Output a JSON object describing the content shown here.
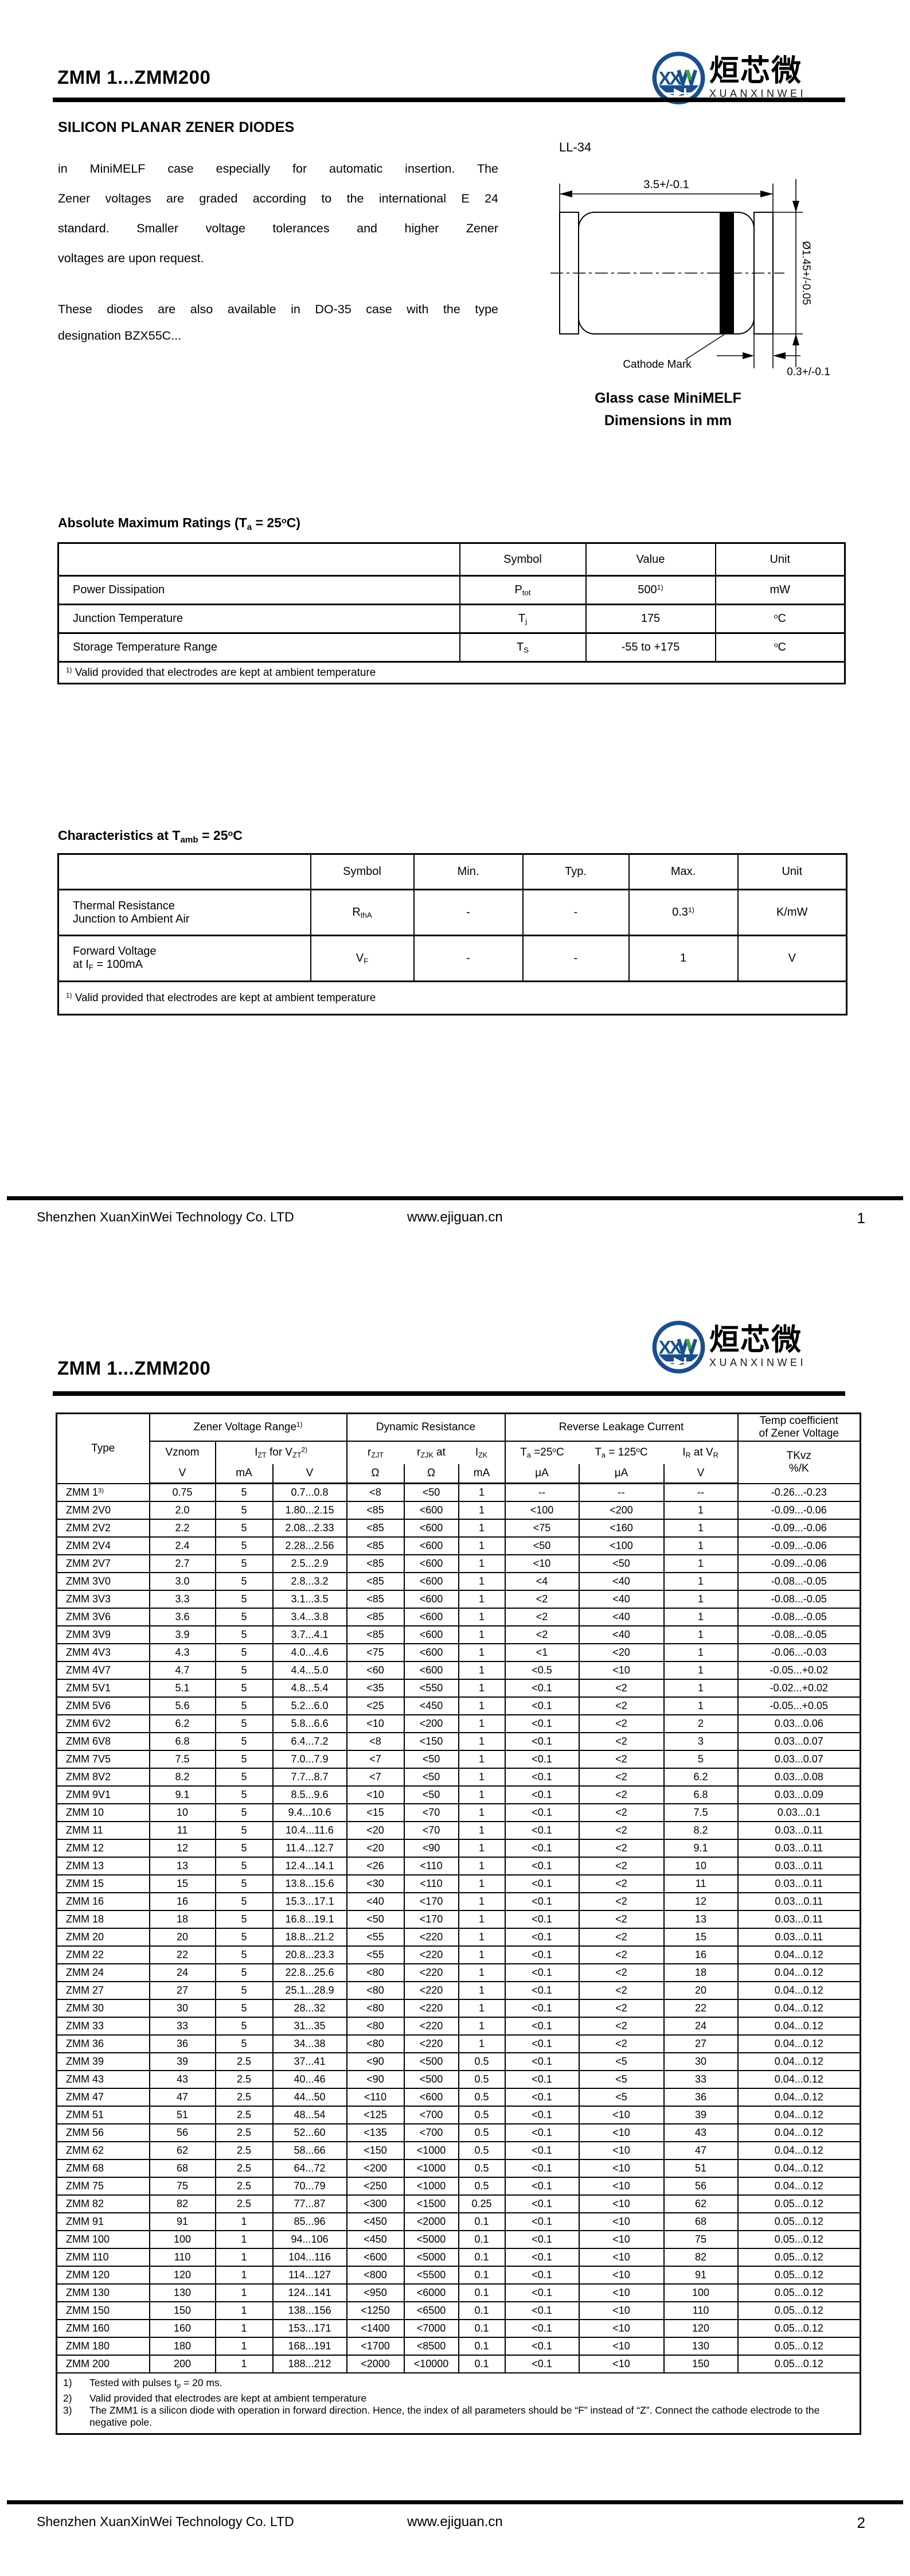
{
  "logo": {
    "chinese": "烜芯微",
    "latin": "XUANXINWEI",
    "monogram": "XX",
    "blue": "#1a4e8f",
    "green": "#3fa63c"
  },
  "footer": {
    "company": "Shenzhen XuanXinWei Technology Co. LTD",
    "website": "www.ejiguan.cn"
  },
  "page1": {
    "title": "ZMM 1...ZMM200",
    "page_number": "1",
    "section_heading": "SILICON PLANAR ZENER DIODES",
    "intro_lines": [
      "in MiniMELF case especially for automatic insertion. The",
      "Zener voltages are graded according to the international E 24",
      "standard. Smaller voltage tolerances and higher Zener",
      "voltages are upon request."
    ],
    "para2_lines": [
      "These diodes are also available in DO-35 case with the type",
      "designation BZX55C..."
    ],
    "package": {
      "name": "LL-34",
      "dim_length": "3.5+/-0.1",
      "dim_diameter": "Ø1.45+/-0.05",
      "dim_band": "0.3+/-0.1",
      "cathode_label": "Cathode Mark",
      "caption1": "Glass case MiniMELF",
      "caption2": "Dimensions in mm"
    },
    "amr": {
      "heading": "Absolute Maximum Ratings (T_{a} = 25^{o}C)",
      "col_headers": [
        "Symbol",
        "Value",
        "Unit"
      ],
      "rows": [
        {
          "param": "Power Dissipation",
          "symbol": "P_{tot}",
          "value": "500^{1)}",
          "unit": "mW"
        },
        {
          "param": "Junction Temperature",
          "symbol": "T_{j}",
          "value": "175",
          "unit": "^{o}C"
        },
        {
          "param": "Storage Temperature Range",
          "symbol": "T_{S}",
          "value": "-55 to +175",
          "unit": "^{o}C"
        }
      ],
      "footnote": "^{1)} Valid provided that electrodes are kept at ambient temperature"
    },
    "characteristics": {
      "heading": "Characteristics at T_{amb} = 25^{o}C",
      "col_headers": [
        "Symbol",
        "Min.",
        "Typ.",
        "Max.",
        "Unit"
      ],
      "rows": [
        {
          "param": "Thermal Resistance\nJunction to Ambient Air",
          "symbol": "R_{thA}",
          "min": "-",
          "typ": "-",
          "max": "0.3^{1)}",
          "unit": "K/mW"
        },
        {
          "param": "Forward Voltage\nat I_{F} = 100mA",
          "symbol": "V_{F}",
          "min": "-",
          "typ": "-",
          "max": "1",
          "unit": "V"
        }
      ],
      "footnote": "^{1)} Valid provided that electrodes are kept at ambient temperature"
    }
  },
  "page2": {
    "title": "ZMM 1...ZMM200",
    "page_number": "2",
    "table": {
      "groups": {
        "type": "Type",
        "zener": "Zener Voltage Range^{1)}",
        "dynamic": "Dynamic Resistance",
        "leakage": "Reverse Leakage Current",
        "tempco": "Temp coefficient\nof Zener Voltage"
      },
      "subheads": {
        "vznom": "Vznom",
        "vznom_unit": "V",
        "izt_vzt": "I_{ZT} for V_{ZT}^{2)}",
        "izt_unit": "mA",
        "vzt_unit": "V",
        "rzjt": "r_{ZJT}",
        "rzjt_unit": "Ω",
        "rzjk": "r_{ZJK} at",
        "rzjk_unit": "Ω",
        "izk": "I_{ZK}",
        "izk_unit": "mA",
        "ta25": "T_{a} =25^{o}C",
        "ta25_unit": "μA",
        "ta125": "T_{a} = 125^{o}C",
        "ta125_unit": "μA",
        "ir": "I_{R} at V_{R}",
        "ir_unit": "V",
        "tkvz": "TKvz\n%/K"
      },
      "rows": [
        [
          "ZMM 1^{3)}",
          "0.75",
          "5",
          "0.7...0.8",
          "<8",
          "<50",
          "1",
          "--",
          "--",
          "--",
          "-0.26...-0.23"
        ],
        [
          "ZMM 2V0",
          "2.0",
          "5",
          "1.80...2.15",
          "<85",
          "<600",
          "1",
          "<100",
          "<200",
          "1",
          "-0.09...-0.06"
        ],
        [
          "ZMM 2V2",
          "2.2",
          "5",
          "2.08...2.33",
          "<85",
          "<600",
          "1",
          "<75",
          "<160",
          "1",
          "-0.09...-0.06"
        ],
        [
          "ZMM 2V4",
          "2.4",
          "5",
          "2.28...2.56",
          "<85",
          "<600",
          "1",
          "<50",
          "<100",
          "1",
          "-0.09...-0.06"
        ],
        [
          "ZMM 2V7",
          "2.7",
          "5",
          "2.5...2.9",
          "<85",
          "<600",
          "1",
          "<10",
          "<50",
          "1",
          "-0.09...-0.06"
        ],
        [
          "ZMM 3V0",
          "3.0",
          "5",
          "2.8...3.2",
          "<85",
          "<600",
          "1",
          "<4",
          "<40",
          "1",
          "-0.08...-0.05"
        ],
        [
          "ZMM 3V3",
          "3.3",
          "5",
          "3.1...3.5",
          "<85",
          "<600",
          "1",
          "<2",
          "<40",
          "1",
          "-0.08...-0.05"
        ],
        [
          "ZMM 3V6",
          "3.6",
          "5",
          "3.4...3.8",
          "<85",
          "<600",
          "1",
          "<2",
          "<40",
          "1",
          "-0.08...-0.05"
        ],
        [
          "ZMM 3V9",
          "3.9",
          "5",
          "3.7...4.1",
          "<85",
          "<600",
          "1",
          "<2",
          "<40",
          "1",
          "-0.08...-0.05"
        ],
        [
          "ZMM 4V3",
          "4.3",
          "5",
          "4.0...4.6",
          "<75",
          "<600",
          "1",
          "<1",
          "<20",
          "1",
          "-0.06...-0.03"
        ],
        [
          "ZMM 4V7",
          "4.7",
          "5",
          "4.4...5.0",
          "<60",
          "<600",
          "1",
          "<0.5",
          "<10",
          "1",
          "-0.05...+0.02"
        ],
        [
          "ZMM 5V1",
          "5.1",
          "5",
          "4.8...5.4",
          "<35",
          "<550",
          "1",
          "<0.1",
          "<2",
          "1",
          "-0.02...+0.02"
        ],
        [
          "ZMM 5V6",
          "5.6",
          "5",
          "5.2...6.0",
          "<25",
          "<450",
          "1",
          "<0.1",
          "<2",
          "1",
          "-0.05...+0.05"
        ],
        [
          "ZMM 6V2",
          "6.2",
          "5",
          "5.8...6.6",
          "<10",
          "<200",
          "1",
          "<0.1",
          "<2",
          "2",
          "0.03...0.06"
        ],
        [
          "ZMM 6V8",
          "6.8",
          "5",
          "6.4...7.2",
          "<8",
          "<150",
          "1",
          "<0.1",
          "<2",
          "3",
          "0.03...0.07"
        ],
        [
          "ZMM 7V5",
          "7.5",
          "5",
          "7.0...7.9",
          "<7",
          "<50",
          "1",
          "<0.1",
          "<2",
          "5",
          "0.03...0.07"
        ],
        [
          "ZMM 8V2",
          "8.2",
          "5",
          "7.7...8.7",
          "<7",
          "<50",
          "1",
          "<0.1",
          "<2",
          "6.2",
          "0.03...0.08"
        ],
        [
          "ZMM 9V1",
          "9.1",
          "5",
          "8.5...9.6",
          "<10",
          "<50",
          "1",
          "<0.1",
          "<2",
          "6.8",
          "0.03...0.09"
        ],
        [
          "ZMM 10",
          "10",
          "5",
          "9.4...10.6",
          "<15",
          "<70",
          "1",
          "<0.1",
          "<2",
          "7.5",
          "0.03...0.1"
        ],
        [
          "ZMM 11",
          "11",
          "5",
          "10.4...11.6",
          "<20",
          "<70",
          "1",
          "<0.1",
          "<2",
          "8.2",
          "0.03...0.11"
        ],
        [
          "ZMM 12",
          "12",
          "5",
          "11.4...12.7",
          "<20",
          "<90",
          "1",
          "<0.1",
          "<2",
          "9.1",
          "0.03...0.11"
        ],
        [
          "ZMM 13",
          "13",
          "5",
          "12.4...14.1",
          "<26",
          "<110",
          "1",
          "<0.1",
          "<2",
          "10",
          "0.03...0.11"
        ],
        [
          "ZMM 15",
          "15",
          "5",
          "13.8...15.6",
          "<30",
          "<110",
          "1",
          "<0.1",
          "<2",
          "11",
          "0.03...0.11"
        ],
        [
          "ZMM 16",
          "16",
          "5",
          "15.3...17.1",
          "<40",
          "<170",
          "1",
          "<0.1",
          "<2",
          "12",
          "0.03...0.11"
        ],
        [
          "ZMM 18",
          "18",
          "5",
          "16.8...19.1",
          "<50",
          "<170",
          "1",
          "<0.1",
          "<2",
          "13",
          "0.03...0.11"
        ],
        [
          "ZMM 20",
          "20",
          "5",
          "18.8...21.2",
          "<55",
          "<220",
          "1",
          "<0.1",
          "<2",
          "15",
          "0.03...0.11"
        ],
        [
          "ZMM 22",
          "22",
          "5",
          "20.8...23.3",
          "<55",
          "<220",
          "1",
          "<0.1",
          "<2",
          "16",
          "0.04...0.12"
        ],
        [
          "ZMM 24",
          "24",
          "5",
          "22.8...25.6",
          "<80",
          "<220",
          "1",
          "<0.1",
          "<2",
          "18",
          "0.04...0.12"
        ],
        [
          "ZMM 27",
          "27",
          "5",
          "25.1...28.9",
          "<80",
          "<220",
          "1",
          "<0.1",
          "<2",
          "20",
          "0.04...0.12"
        ],
        [
          "ZMM 30",
          "30",
          "5",
          "28...32",
          "<80",
          "<220",
          "1",
          "<0.1",
          "<2",
          "22",
          "0.04...0.12"
        ],
        [
          "ZMM 33",
          "33",
          "5",
          "31...35",
          "<80",
          "<220",
          "1",
          "<0.1",
          "<2",
          "24",
          "0.04...0.12"
        ],
        [
          "ZMM 36",
          "36",
          "5",
          "34...38",
          "<80",
          "<220",
          "1",
          "<0.1",
          "<2",
          "27",
          "0.04...0.12"
        ],
        [
          "ZMM 39",
          "39",
          "2.5",
          "37...41",
          "<90",
          "<500",
          "0.5",
          "<0.1",
          "<5",
          "30",
          "0.04...0.12"
        ],
        [
          "ZMM 43",
          "43",
          "2.5",
          "40...46",
          "<90",
          "<500",
          "0.5",
          "<0.1",
          "<5",
          "33",
          "0.04...0.12"
        ],
        [
          "ZMM 47",
          "47",
          "2.5",
          "44...50",
          "<110",
          "<600",
          "0.5",
          "<0.1",
          "<5",
          "36",
          "0.04...0.12"
        ],
        [
          "ZMM 51",
          "51",
          "2.5",
          "48...54",
          "<125",
          "<700",
          "0.5",
          "<0.1",
          "<10",
          "39",
          "0.04...0.12"
        ],
        [
          "ZMM 56",
          "56",
          "2.5",
          "52...60",
          "<135",
          "<700",
          "0.5",
          "<0.1",
          "<10",
          "43",
          "0.04...0.12"
        ],
        [
          "ZMM 62",
          "62",
          "2.5",
          "58...66",
          "<150",
          "<1000",
          "0.5",
          "<0.1",
          "<10",
          "47",
          "0.04...0.12"
        ],
        [
          "ZMM 68",
          "68",
          "2.5",
          "64...72",
          "<200",
          "<1000",
          "0.5",
          "<0.1",
          "<10",
          "51",
          "0.04...0.12"
        ],
        [
          "ZMM 75",
          "75",
          "2.5",
          "70...79",
          "<250",
          "<1000",
          "0.5",
          "<0.1",
          "<10",
          "56",
          "0.04...0.12"
        ],
        [
          "ZMM 82",
          "82",
          "2.5",
          "77...87",
          "<300",
          "<1500",
          "0.25",
          "<0.1",
          "<10",
          "62",
          "0.05...0.12"
        ],
        [
          "ZMM 91",
          "91",
          "1",
          "85...96",
          "<450",
          "<2000",
          "0.1",
          "<0.1",
          "<10",
          "68",
          "0.05...0.12"
        ],
        [
          "ZMM 100",
          "100",
          "1",
          "94...106",
          "<450",
          "<5000",
          "0.1",
          "<0.1",
          "<10",
          "75",
          "0.05...0.12"
        ],
        [
          "ZMM 110",
          "110",
          "1",
          "104...116",
          "<600",
          "<5000",
          "0.1",
          "<0.1",
          "<10",
          "82",
          "0.05...0.12"
        ],
        [
          "ZMM 120",
          "120",
          "1",
          "114...127",
          "<800",
          "<5500",
          "0.1",
          "<0.1",
          "<10",
          "91",
          "0.05...0.12"
        ],
        [
          "ZMM 130",
          "130",
          "1",
          "124...141",
          "<950",
          "<6000",
          "0.1",
          "<0.1",
          "<10",
          "100",
          "0.05...0.12"
        ],
        [
          "ZMM 150",
          "150",
          "1",
          "138...156",
          "<1250",
          "<6500",
          "0.1",
          "<0.1",
          "<10",
          "110",
          "0.05...0.12"
        ],
        [
          "ZMM 160",
          "160",
          "1",
          "153...171",
          "<1400",
          "<7000",
          "0.1",
          "<0.1",
          "<10",
          "120",
          "0.05...0.12"
        ],
        [
          "ZMM 180",
          "180",
          "1",
          "168...191",
          "<1700",
          "<8500",
          "0.1",
          "<0.1",
          "<10",
          "130",
          "0.05...0.12"
        ],
        [
          "ZMM 200",
          "200",
          "1",
          "188...212",
          "<2000",
          "<10000",
          "0.1",
          "<0.1",
          "<10",
          "150",
          "0.05...0.12"
        ]
      ],
      "notes": [
        {
          "num": "1)",
          "text": "Tested with pulses t_{p} = 20 ms."
        },
        {
          "num": "2)",
          "text": "Valid provided that electrodes are kept at ambient temperature"
        },
        {
          "num": "3)",
          "text": "The ZMM1 is a silicon diode with operation in forward direction. Hence, the index of all parameters should be “F” instead of “Z”. Connect the cathode electrode to the negative pole."
        }
      ]
    }
  }
}
